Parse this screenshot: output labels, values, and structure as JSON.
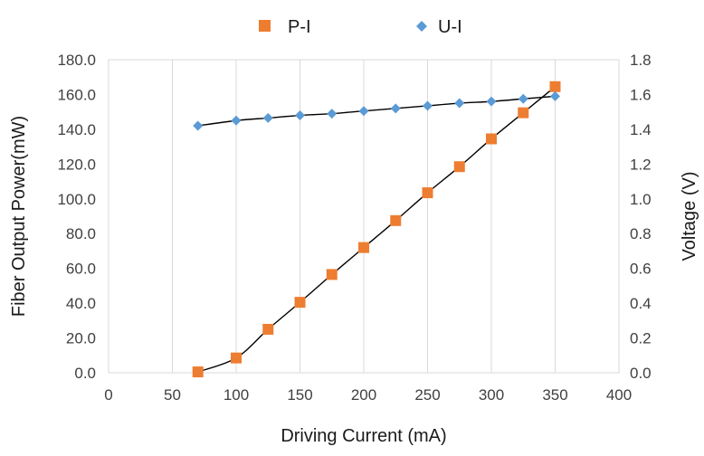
{
  "chart_data": {
    "type": "scatter",
    "xlabel": "Driving Current (mA)",
    "ylabel": "Fiber Output Power(mW)",
    "y2label": "Voltage (V)",
    "xlim": [
      0,
      400
    ],
    "ylim": [
      0,
      180
    ],
    "y2lim": [
      0,
      1.8
    ],
    "x_ticks": [
      "0",
      "50",
      "100",
      "150",
      "200",
      "250",
      "300",
      "350",
      "400"
    ],
    "y_ticks": [
      "0.0",
      "20.0",
      "40.0",
      "60.0",
      "80.0",
      "100.0",
      "120.0",
      "140.0",
      "160.0",
      "180.0"
    ],
    "y2_ticks": [
      "0.0",
      "0.2",
      "0.4",
      "0.6",
      "0.8",
      "1.0",
      "1.2",
      "1.4",
      "1.6",
      "1.8"
    ],
    "grid": "vertical",
    "legend_position": "top",
    "series": [
      {
        "name": "P-I",
        "axis": "left",
        "marker": "square",
        "color": "#ED7D31",
        "x": [
          70,
          100,
          125,
          150,
          175,
          200,
          225,
          250,
          275,
          300,
          325,
          350
        ],
        "y": [
          0.5,
          8.5,
          25.0,
          40.5,
          56.5,
          72.0,
          87.5,
          103.5,
          118.5,
          134.5,
          149.5,
          164.5
        ]
      },
      {
        "name": "U-I",
        "axis": "right",
        "marker": "diamond",
        "color": "#5B9BD5",
        "x": [
          70,
          100,
          125,
          150,
          175,
          200,
          225,
          250,
          275,
          300,
          325,
          350
        ],
        "y": [
          1.42,
          1.45,
          1.465,
          1.48,
          1.49,
          1.505,
          1.52,
          1.535,
          1.55,
          1.56,
          1.575,
          1.59
        ]
      }
    ]
  }
}
